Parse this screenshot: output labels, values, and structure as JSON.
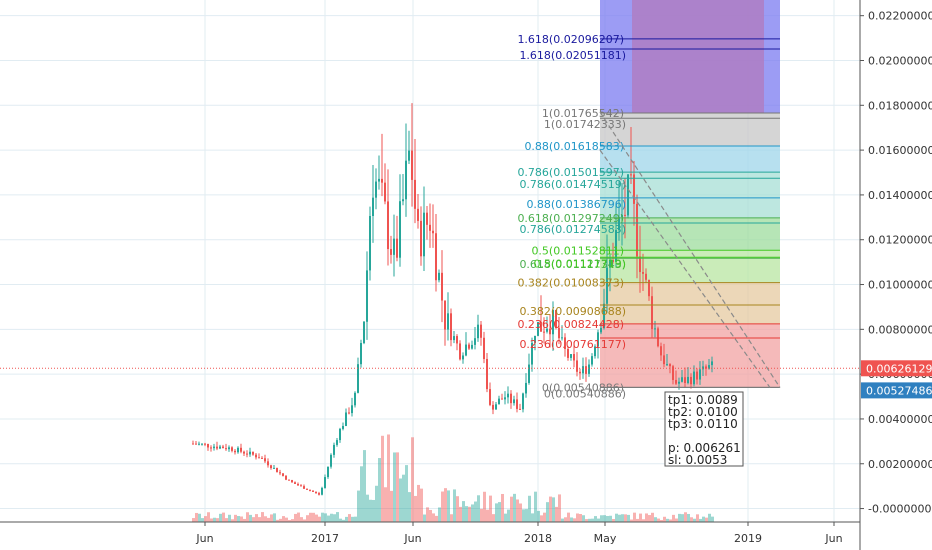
{
  "chart_data": {
    "type": "candlestick",
    "x_ticks": [
      "Jun",
      "2017",
      "Jun",
      "2018",
      "May",
      "2019",
      "Jun"
    ],
    "y_ticks": [
      "0.02200000",
      "0.02000000",
      "0.01800000",
      "0.01600000",
      "0.01400000",
      "0.01200000",
      "0.01000000",
      "0.00800000",
      "0.00600000",
      "0.00400000",
      "0.00200000",
      "-0.00000000"
    ],
    "ylim": [
      -0.0006,
      0.0227
    ],
    "price_tags": [
      {
        "label": "0.00626129",
        "value": 0.00626129,
        "color": "#ef5350"
      },
      {
        "label": "0.00527486",
        "value": 0.00527486,
        "color": "#2f80c0"
      }
    ],
    "fib_set_1": [
      {
        "text": "1.618(0.02096207)",
        "value": 0.02096207,
        "color": "#1a1a9e"
      },
      {
        "text": "1(0.01765542)",
        "value": 0.01765542,
        "color": "#777777"
      },
      {
        "text": "0.88(0.01618583)",
        "value": 0.01618583,
        "color": "#2196c8"
      },
      {
        "text": "0.786(0.01501597)",
        "value": 0.01501597,
        "color": "#26a69a"
      },
      {
        "text": "0.618(0.01297249)",
        "value": 0.01297249,
        "color": "#4caf50"
      },
      {
        "text": "0.5(0.01152811)",
        "value": 0.01152811,
        "color": "#43c823"
      },
      {
        "text": "0.382(0.01008373)",
        "value": 0.01008373,
        "color": "#a8841e"
      },
      {
        "text": "0.236(0.00824428)",
        "value": 0.00824428,
        "color": "#e53935"
      },
      {
        "text": "0(0.00540886)",
        "value": 0.00540886,
        "color": "#777777"
      }
    ],
    "fib_set_2": [
      {
        "text": "1.618(0.02051181)",
        "value": 0.02051181,
        "color": "#1a1a9e"
      },
      {
        "text": "1(0.01742333)",
        "value": 0.01742333,
        "color": "#777777"
      },
      {
        "text": "0.88(0.01386796)",
        "value": 0.01386796,
        "color": "#2196c8"
      },
      {
        "text": "0.786(0.01474519)",
        "value": 0.01474519,
        "color": "#26a69a"
      },
      {
        "text": "0.786(0.01274583)",
        "value": 0.01274583,
        "color": "#26a69a"
      },
      {
        "text": "0.618(0.01117343)",
        "value": 0.01117343,
        "color": "#4caf50"
      },
      {
        "text": "0.5(0.01121719)",
        "value": 0.01121719,
        "color": "#43c823"
      },
      {
        "text": "0.382(0.00908688)",
        "value": 0.00908688,
        "color": "#a8841e"
      },
      {
        "text": "0.236(0.00761177)",
        "value": 0.00761177,
        "color": "#e53935"
      },
      {
        "text": "0(0.00540886)",
        "value": 0.00540886,
        "color": "#777777"
      }
    ],
    "zones": [
      {
        "from": 0.0227,
        "to": 0.01765542,
        "color": "#7b7bf0"
      },
      {
        "from": 0.01765542,
        "to": 0.01618583,
        "color": "#c7c7c7"
      },
      {
        "from": 0.01618583,
        "to": 0.01501597,
        "color": "#9fd6ea"
      },
      {
        "from": 0.01501597,
        "to": 0.01297249,
        "color": "#a7dfd6"
      },
      {
        "from": 0.01297249,
        "to": 0.01152811,
        "color": "#9edc9e"
      },
      {
        "from": 0.01152811,
        "to": 0.01008373,
        "color": "#b8e6a2"
      },
      {
        "from": 0.01008373,
        "to": 0.00824428,
        "color": "#e6c9a0"
      },
      {
        "from": 0.00824428,
        "to": 0.00540886,
        "color": "#f2a3a3"
      }
    ],
    "zone_top": {
      "color": "#b07cc0"
    },
    "targets": {
      "tp1": "tp1: 0.0089",
      "tp2": "tp2: 0.0100",
      "tp3": "tp3: 0.0110",
      "p": "p: 0.006261",
      "sl": "sl: 0.0053"
    },
    "colors": {
      "up": "#26a69a",
      "down": "#ef5350",
      "grid": "#e1ecf2"
    }
  }
}
